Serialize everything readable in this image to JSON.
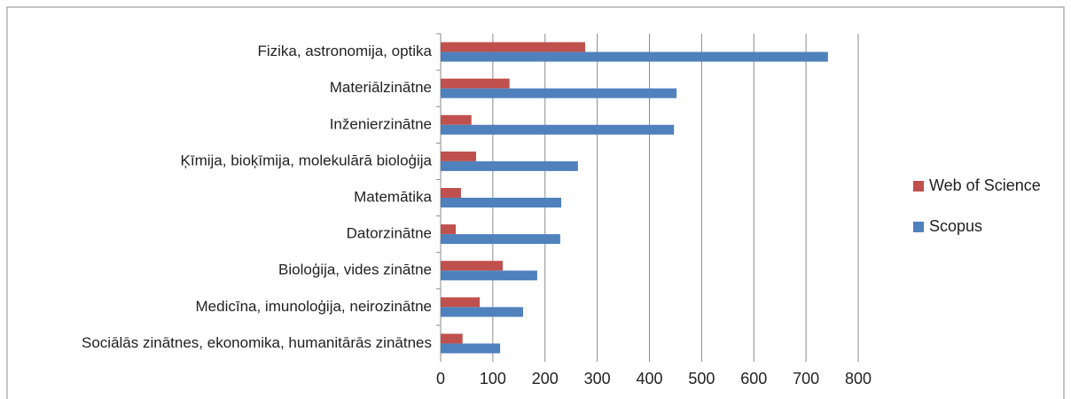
{
  "chart_data": {
    "type": "barh",
    "categories": [
      "Fizika, astronomija, optika",
      "Materiālzinātne",
      "Inženierzinātne",
      "Ķīmija, bioķīmija, molekulārā bioloģija",
      "Matemātika",
      "Datorzinātne",
      "Bioloģija, vides zinātne",
      "Medicīna, imunoloģija, neirozinātne",
      "Sociālās zinātnes, ekonomika, humanitārās zinātnes"
    ],
    "series": [
      {
        "name": "Web of Science",
        "color": "#c0504d",
        "values": [
          277,
          132,
          59,
          68,
          39,
          29,
          119,
          75,
          42
        ]
      },
      {
        "name": "Scopus",
        "color": "#4f81bd",
        "values": [
          742,
          452,
          447,
          263,
          231,
          229,
          185,
          158,
          114
        ]
      }
    ],
    "xlim": [
      0,
      800
    ],
    "xticks": [
      0,
      100,
      200,
      300,
      400,
      500,
      600,
      700,
      800
    ],
    "grid": true,
    "legend": "right"
  }
}
